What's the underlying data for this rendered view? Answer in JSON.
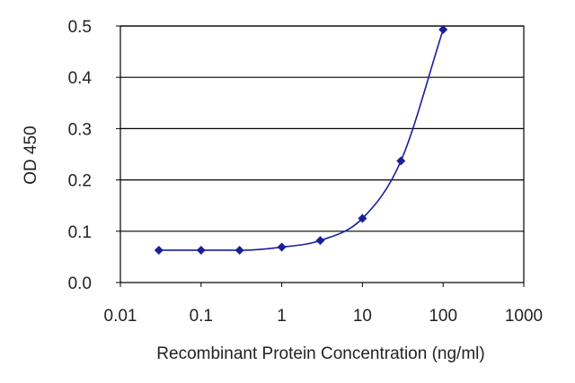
{
  "chart_data": {
    "type": "scatter",
    "title": "",
    "xlabel": "Recombinant Protein Concentration (ng/ml)",
    "ylabel": "OD 450",
    "x_scale": "log",
    "xlim": [
      0.01,
      1000
    ],
    "ylim": [
      0.0,
      0.5
    ],
    "x_ticks": [
      "0.01",
      "0.1",
      "1",
      "10",
      "100",
      "1000"
    ],
    "y_ticks": [
      "0.0",
      "0.1",
      "0.2",
      "0.3",
      "0.4",
      "0.5"
    ],
    "grid": "horizontal",
    "legend": "none",
    "colors": {
      "series": "#1a1f9a",
      "grid": "#000000",
      "axis": "#000000"
    },
    "series": [
      {
        "x": [
          0.03,
          0.1,
          0.3,
          1,
          3,
          10,
          30,
          100
        ],
        "y": [
          0.063,
          0.063,
          0.063,
          0.069,
          0.082,
          0.125,
          0.237,
          0.493
        ],
        "fit_line": true
      }
    ]
  }
}
